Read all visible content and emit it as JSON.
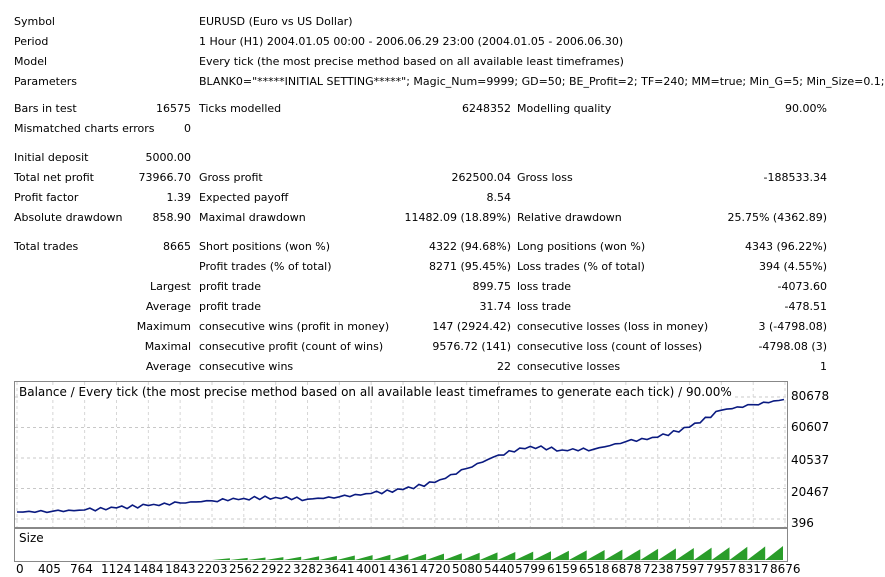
{
  "report": {
    "symbol_label": "Symbol",
    "symbol_value": "EURUSD (Euro vs US Dollar)",
    "period_label": "Period",
    "period_value": "1 Hour (H1) 2004.01.05 00:00 - 2006.06.29 23:00 (2004.01.05 - 2006.06.30)",
    "model_label": "Model",
    "model_value": "Every tick (the most precise method based on all available least timeframes)",
    "parameters_label": "Parameters",
    "parameters_value": "BLANK0=\"*****INITIAL SETTING*****\"; Magic_Num=9999; GD=50; BE_Profit=2; TF=240; MM=true; Min_G=5; Min_Size=0.1;",
    "bars_label": "Bars in test",
    "bars_value": "16575",
    "ticks_label": "Ticks modelled",
    "ticks_value": "6248352",
    "quality_label": "Modelling quality",
    "quality_value": "90.00%",
    "mismatch_label": "Mismatched charts errors",
    "mismatch_value": "0",
    "deposit_label": "Initial deposit",
    "deposit_value": "5000.00",
    "netprofit_label": "Total net profit",
    "netprofit_value": "73966.70",
    "grossprofit_label": "Gross profit",
    "grossprofit_value": "262500.04",
    "grossloss_label": "Gross loss",
    "grossloss_value": "-188533.34",
    "pf_label": "Profit factor",
    "pf_value": "1.39",
    "payoff_label": "Expected payoff",
    "payoff_value": "8.54",
    "absdd_label": "Absolute drawdown",
    "absdd_value": "858.90",
    "maxdd_label": "Maximal drawdown",
    "maxdd_value": "11482.09 (18.89%)",
    "reldd_label": "Relative drawdown",
    "reldd_value": "25.75% (4362.89)",
    "trades_label": "Total trades",
    "trades_value": "8665",
    "short_label": "Short positions (won %)",
    "short_value": "4322 (94.68%)",
    "long_label": "Long positions (won %)",
    "long_value": "4343 (96.22%)",
    "proftrades_label": "Profit trades (% of total)",
    "proftrades_value": "8271 (95.45%)",
    "losstrades_label": "Loss trades (% of total)",
    "losstrades_value": "394 (4.55%)",
    "largest_label": "Largest",
    "largest_profit_label": "profit trade",
    "largest_profit_value": "899.75",
    "largest_loss_label": "loss trade",
    "largest_loss_value": "-4073.60",
    "average_label": "Average",
    "average_profit_label": "profit trade",
    "average_profit_value": "31.74",
    "average_loss_label": "loss trade",
    "average_loss_value": "-478.51",
    "maximum_label": "Maximum",
    "max_wins_label": "consecutive wins (profit in money)",
    "max_wins_value": "147 (2924.42)",
    "max_losses_label": "consecutive losses (loss in money)",
    "max_losses_value": "3 (-4798.08)",
    "maximal_label": "Maximal",
    "maximal_profit_label": "consecutive profit (count of wins)",
    "maximal_profit_value": "9576.72 (141)",
    "maximal_loss_label": "consecutive loss (count of losses)",
    "maximal_loss_value": "-4798.08 (3)",
    "average2_label": "Average",
    "avg_wins_label": "consecutive wins",
    "avg_wins_value": "22",
    "avg_losses_label": "consecutive losses",
    "avg_losses_value": "1"
  },
  "chart_data": {
    "type": "line",
    "title": "Balance / Every tick (the most precise method based on all available least timeframes to generate each tick) / 90.00%",
    "size_title": "Size",
    "ylim": [
      396,
      80678
    ],
    "y_ticks": [
      "80678",
      "60607",
      "40537",
      "20467",
      "396"
    ],
    "x_ticks": [
      "0",
      "405",
      "764",
      "1124",
      "1484",
      "1843",
      "2203",
      "2562",
      "2922",
      "3282",
      "3641",
      "4001",
      "4361",
      "4720",
      "5080",
      "5440",
      "5799",
      "6159",
      "6518",
      "6878",
      "7238",
      "7597",
      "7957",
      "8317",
      "8676"
    ],
    "xlim": [
      0,
      8676
    ],
    "x": [
      0,
      405,
      764,
      1124,
      1484,
      1843,
      2203,
      2562,
      2922,
      3282,
      3641,
      4001,
      4361,
      4720,
      5080,
      5440,
      5799,
      6159,
      6518,
      6878,
      7238,
      7597,
      7957,
      8317,
      8665
    ],
    "balance": [
      5000,
      5500,
      6300,
      7700,
      9300,
      11000,
      12400,
      13900,
      14600,
      13400,
      15000,
      17200,
      19800,
      24500,
      33600,
      42500,
      48200,
      45800,
      46300,
      51300,
      54200,
      60800,
      72000,
      75600,
      79000
    ],
    "grid": true,
    "line_color": "#0a1a80",
    "size_color": "#2a9d2a"
  }
}
